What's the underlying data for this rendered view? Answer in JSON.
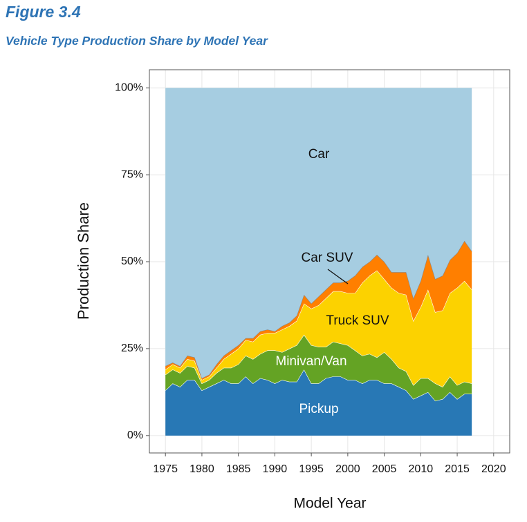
{
  "header": {
    "figure": "Figure 3.4",
    "title": "Vehicle Type Production Share by Model Year"
  },
  "chart_data": {
    "type": "stacked-area",
    "xlabel": "Model Year",
    "ylabel": "Production Share",
    "x": [
      1975,
      1976,
      1977,
      1978,
      1979,
      1980,
      1981,
      1982,
      1983,
      1984,
      1985,
      1986,
      1987,
      1988,
      1989,
      1990,
      1991,
      1992,
      1993,
      1994,
      1995,
      1996,
      1997,
      1998,
      1999,
      2000,
      2001,
      2002,
      2003,
      2004,
      2005,
      2006,
      2007,
      2008,
      2009,
      2010,
      2011,
      2012,
      2013,
      2014,
      2015,
      2016,
      2017
    ],
    "series": [
      {
        "name": "Pickup",
        "color": "#2878b5",
        "values": [
          13,
          15,
          14,
          16,
          16,
          13,
          14,
          15,
          16,
          15,
          15,
          17,
          15,
          16.5,
          16,
          15,
          16,
          15.5,
          15.5,
          19,
          15,
          15,
          16.5,
          17,
          17,
          16,
          16,
          15,
          16,
          16,
          15,
          15,
          14,
          13,
          10.5,
          11.5,
          12.5,
          10,
          10.5,
          12.5,
          10.5,
          12,
          12
        ]
      },
      {
        "name": "Minivan/Van",
        "color": "#64a324",
        "values": [
          4.5,
          4,
          4,
          4,
          3.5,
          2,
          2,
          3,
          3.5,
          4.5,
          5.5,
          6,
          7,
          7,
          8.5,
          9.5,
          8,
          9.5,
          10.5,
          10,
          11,
          10.5,
          9,
          10,
          9.5,
          10,
          8.5,
          8,
          7.5,
          6.5,
          9,
          7,
          5.5,
          5.5,
          4,
          5,
          4,
          5,
          3.5,
          4.5,
          4,
          3.5,
          3
        ]
      },
      {
        "name": "Truck SUV",
        "color": "#fcd200",
        "values": [
          1.5,
          1.5,
          1.5,
          2,
          2,
          1,
          1,
          1.5,
          2.5,
          4,
          4.5,
          4.5,
          5,
          5.5,
          5,
          5,
          6.5,
          6.5,
          7,
          9,
          10.5,
          12,
          14,
          14.5,
          15,
          15,
          16.5,
          21,
          22.5,
          25,
          21,
          20.5,
          21.5,
          22,
          18.5,
          20.5,
          25.5,
          20.5,
          22,
          24,
          28,
          29,
          27
        ]
      },
      {
        "name": "Car SUV",
        "color": "#ff7f00",
        "values": [
          1,
          0.5,
          0.5,
          1,
          1,
          0.5,
          0.5,
          1,
          1,
          1,
          1,
          0.5,
          1,
          1,
          1,
          0.5,
          1,
          1,
          1.5,
          2.5,
          1.5,
          2.5,
          2.5,
          2.5,
          2.5,
          3.5,
          5,
          4.5,
          4,
          4.5,
          5,
          4.5,
          6,
          6.5,
          6.5,
          7.5,
          10,
          9.5,
          10,
          9.5,
          10,
          11.5,
          11
        ]
      },
      {
        "name": "Car",
        "color": "#a6cde1",
        "values": [
          80,
          79,
          80,
          77,
          77.5,
          83.5,
          82.5,
          79.5,
          77,
          75.5,
          74,
          72,
          72,
          70,
          69.5,
          70,
          68.5,
          67.5,
          65.5,
          59.5,
          62,
          60,
          58,
          56,
          56,
          55.5,
          54,
          51.5,
          50,
          48,
          50,
          53,
          53,
          53,
          60.5,
          55.5,
          48,
          55,
          54,
          49.5,
          47.5,
          44,
          47
        ]
      }
    ],
    "xlim": [
      1972.8,
      2022.2
    ],
    "ylim": [
      -5,
      105.2
    ],
    "xticks": [
      1975,
      1980,
      1985,
      1990,
      1995,
      2000,
      2005,
      2010,
      2015,
      2020
    ],
    "yticks": [
      {
        "value": 0,
        "label": "0%"
      },
      {
        "value": 25,
        "label": "25%"
      },
      {
        "value": 50,
        "label": "50%"
      },
      {
        "value": 75,
        "label": "75%"
      },
      {
        "value": 100,
        "label": "100%"
      }
    ],
    "grid": true
  }
}
